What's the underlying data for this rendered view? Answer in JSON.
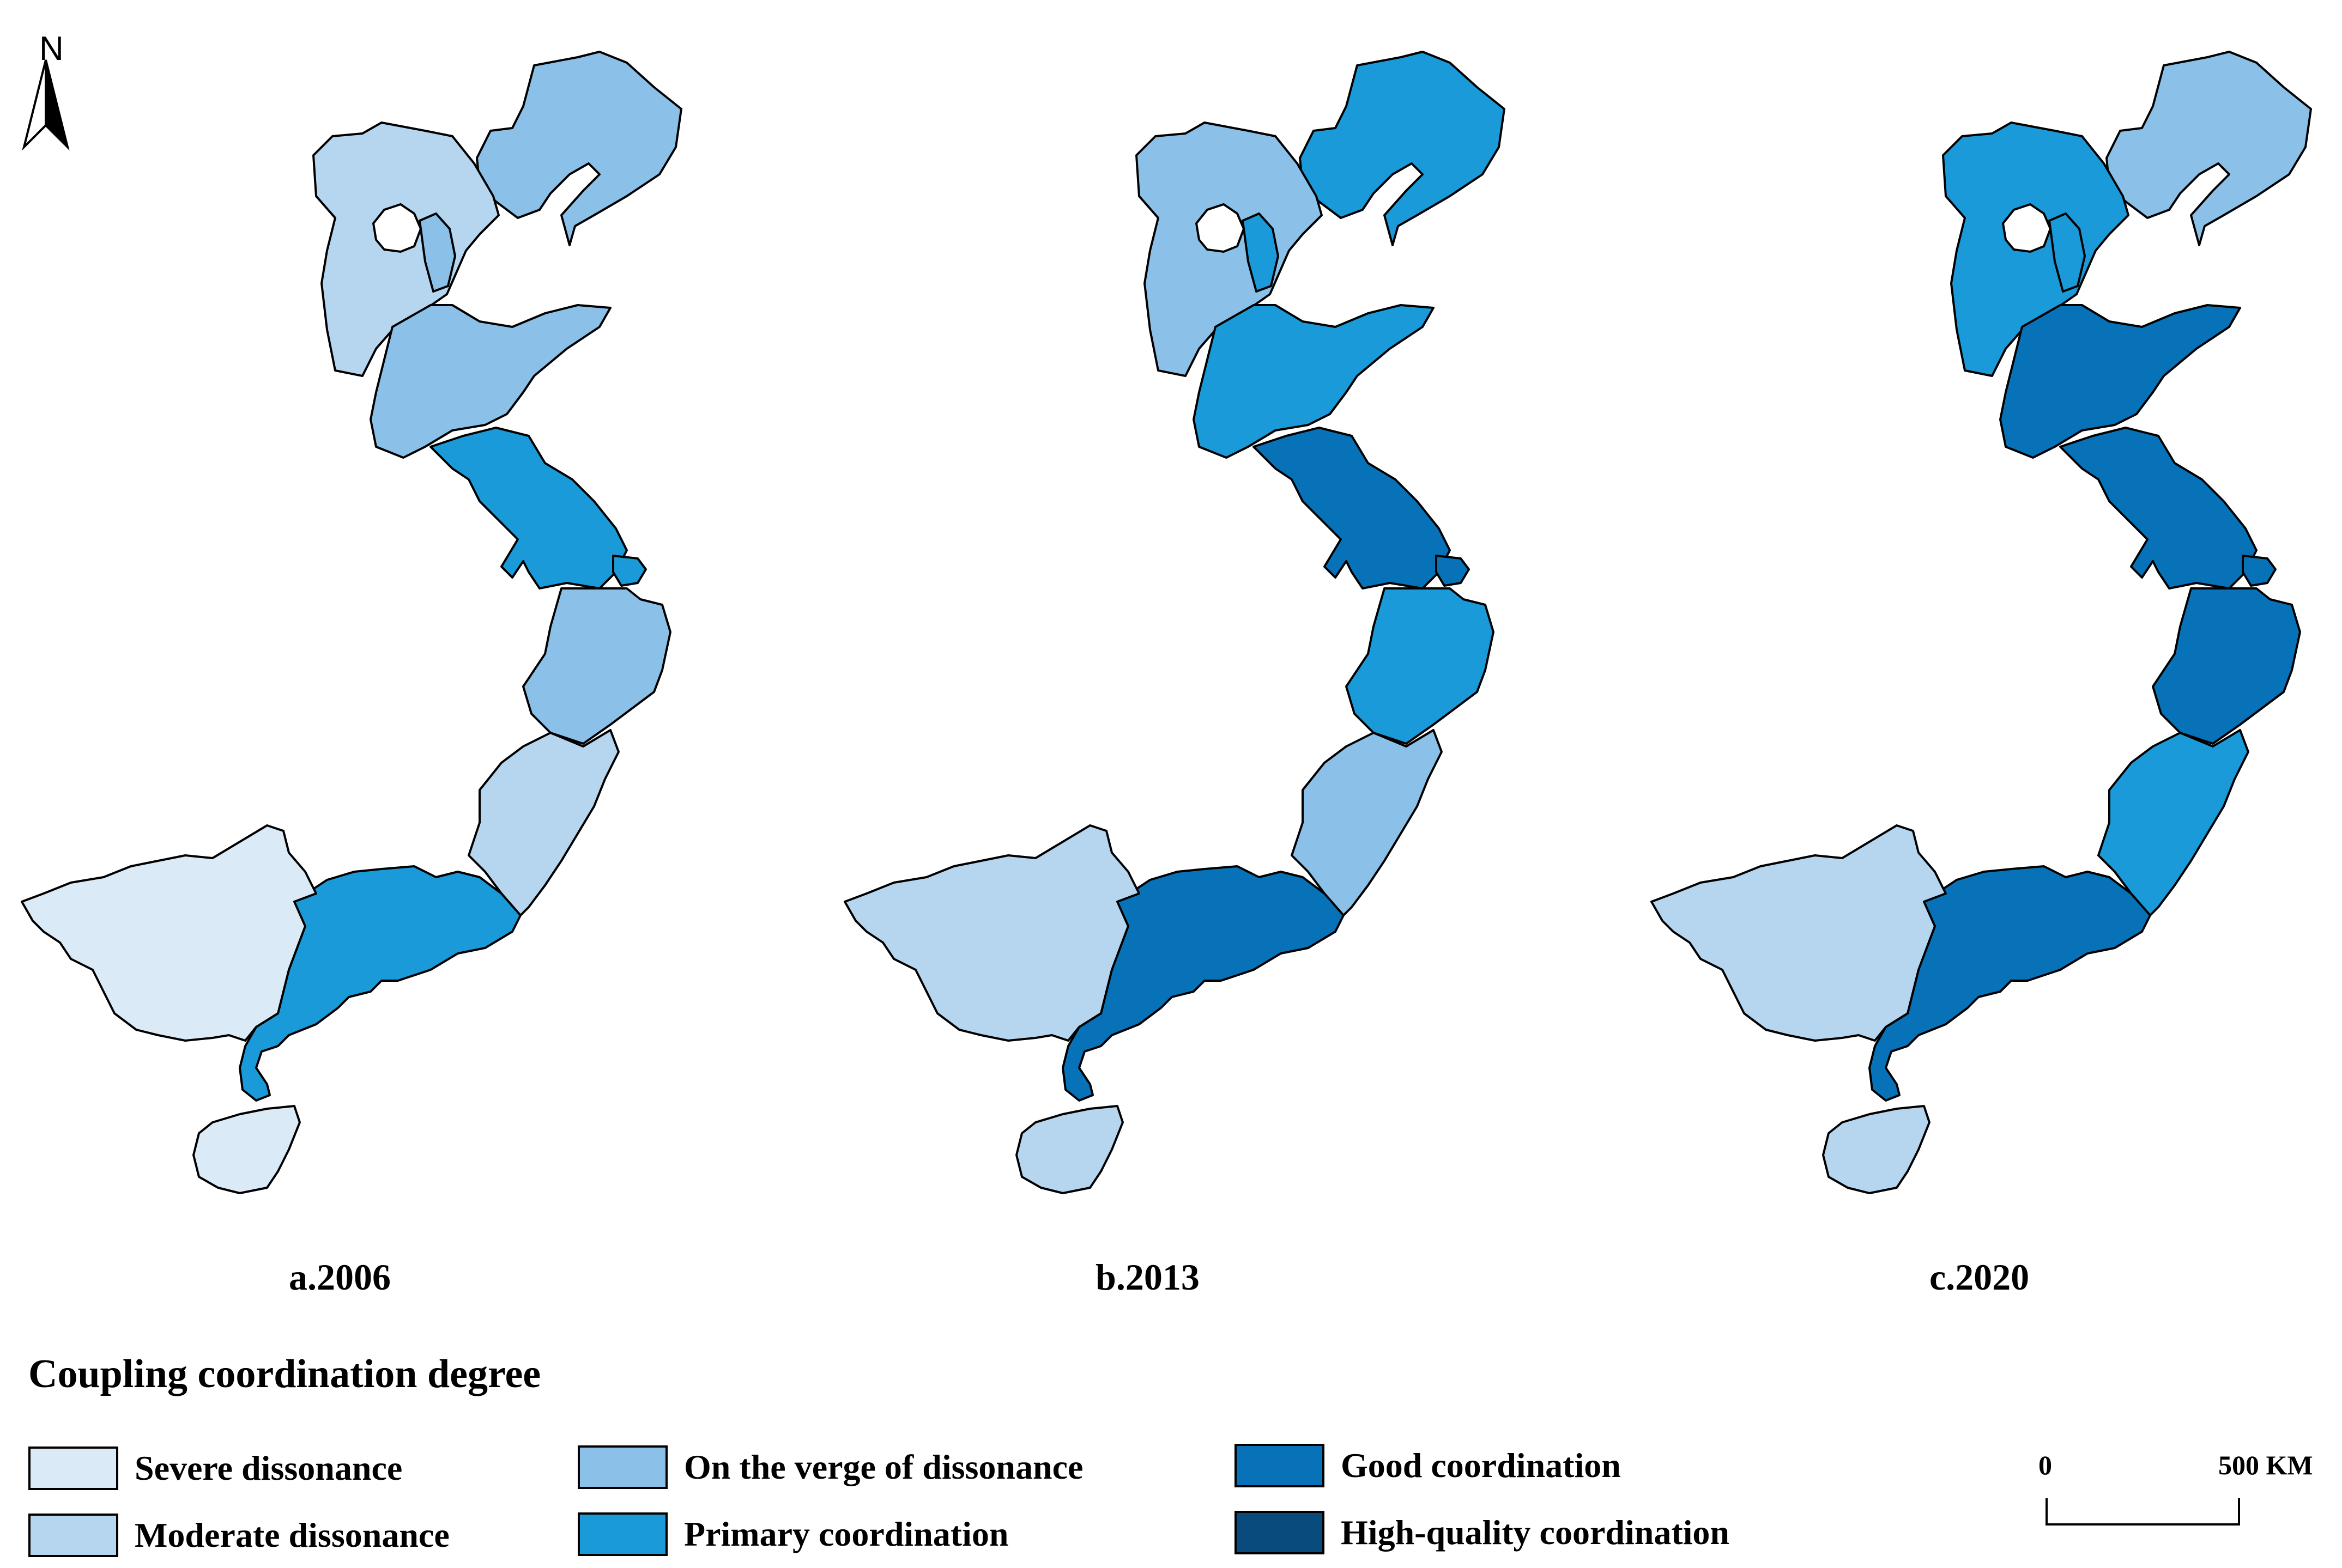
{
  "north_label": "N",
  "panels": [
    {
      "label": "a.2006",
      "classes": {
        "liaoning": 3,
        "hebei": 2,
        "tianjin": 3,
        "shandong": 3,
        "jiangsu": 4,
        "shanghai": 4,
        "zhejiang": 3,
        "fujian": 2,
        "guangdong": 4,
        "guangxi": 1,
        "hainan": 1
      }
    },
    {
      "label": "b.2013",
      "classes": {
        "liaoning": 4,
        "hebei": 3,
        "tianjin": 4,
        "shandong": 4,
        "jiangsu": 5,
        "shanghai": 5,
        "zhejiang": 4,
        "fujian": 3,
        "guangdong": 5,
        "guangxi": 2,
        "hainan": 2
      }
    },
    {
      "label": "c.2020",
      "classes": {
        "liaoning": 3,
        "hebei": 4,
        "tianjin": 4,
        "shandong": 5,
        "jiangsu": 5,
        "shanghai": 5,
        "zhejiang": 5,
        "fujian": 4,
        "guangdong": 5,
        "guangxi": 2,
        "hainan": 2
      }
    }
  ],
  "legend": {
    "title": "Coupling coordination degree",
    "items": [
      {
        "class": 1,
        "label": "Severe dissonance",
        "color": "#dbeaf7"
      },
      {
        "class": 2,
        "label": "Moderate dissonance",
        "color": "#b6d6f0"
      },
      {
        "class": 3,
        "label": "On the verge of dissonance",
        "color": "#8bc1e8"
      },
      {
        "class": 4,
        "label": "Primary coordination",
        "color": "#1a9ad9"
      },
      {
        "class": 5,
        "label": "Good coordination",
        "color": "#0872b9"
      },
      {
        "class": 6,
        "label": "High-quality coordination",
        "color": "#084b7c"
      }
    ]
  },
  "scale_bar": {
    "start_label": "0",
    "end_label": "500 KM"
  }
}
